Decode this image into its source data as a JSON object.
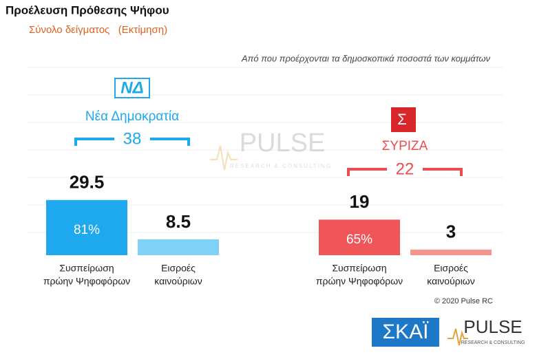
{
  "chart_data": {
    "type": "bar",
    "title": "Προέλευση Πρόθεσης Ψήφου",
    "subtitle": "Σύνολο δείγματος   (Εκτίμηση)",
    "annotation": "Από που προέρχονται τα δημοσκοπικά ποσοστά των κομμάτων",
    "categories": [
      [
        "Συσπείρωση",
        "πρώην Ψηφοφόρων"
      ],
      [
        "Εισροές",
        "καινούριων"
      ]
    ],
    "groups": [
      {
        "name": "Νέα Δημοκρατία",
        "logo": "ΝΔ",
        "total": 38,
        "values": [
          29.5,
          8.5
        ],
        "colors": [
          "#1ea8ee",
          "#80d1f6"
        ],
        "name_color": "#1ea8ee",
        "retention": {
          "value": 81,
          "label": "81%"
        }
      },
      {
        "name": "ΣΥΡΙΖΑ",
        "logo": "Σ",
        "total": 22,
        "values": [
          19,
          3
        ],
        "colors": [
          "#f0555a",
          "#f6958b"
        ],
        "name_color": "#ee4b4f",
        "retention": {
          "value": 65,
          "label": "65%"
        }
      }
    ],
    "copyright": "© 2020 Pulse RC",
    "watermark": {
      "name": "PULSE",
      "tagline": "RESEARCH & CONSULTING"
    },
    "footer_logos": {
      "skai": "ΣΚΑΪ",
      "pulse": "PULSE",
      "pulse_tagline": "RESEARCH & CONSULTING"
    }
  }
}
